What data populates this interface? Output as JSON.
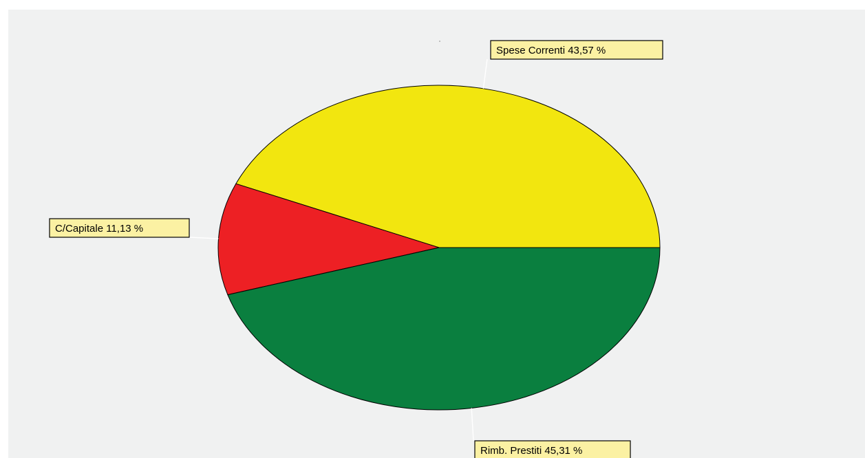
{
  "chart_data": {
    "type": "pie",
    "title": "",
    "slices": [
      {
        "label": "Spese Correnti 43,57 %",
        "value": 43.57,
        "color": "#f2e60f"
      },
      {
        "label": "C/Capitale 11,13 %",
        "value": 11.13,
        "color": "#ed2024"
      },
      {
        "label": "Rimb. Prestiti 45,31 %",
        "value": 45.31,
        "color": "#0a7f3f"
      }
    ],
    "start_angle": "3 o'clock",
    "direction": "counter-clockwise",
    "legend": "none",
    "label_box_color": "#fbf1a3",
    "background_color": "#f0f1f1"
  }
}
